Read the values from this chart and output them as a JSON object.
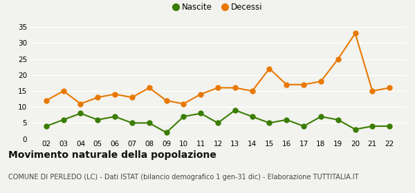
{
  "years": [
    "02",
    "03",
    "04",
    "05",
    "06",
    "07",
    "08",
    "09",
    "10",
    "11",
    "12",
    "13",
    "14",
    "15",
    "16",
    "17",
    "18",
    "19",
    "20",
    "21",
    "22"
  ],
  "nascite": [
    4,
    6,
    8,
    6,
    7,
    5,
    5,
    2,
    7,
    8,
    5,
    9,
    7,
    5,
    6,
    4,
    7,
    6,
    3,
    4,
    4
  ],
  "decessi": [
    12,
    15,
    11,
    13,
    14,
    13,
    16,
    12,
    11,
    14,
    16,
    16,
    15,
    22,
    17,
    17,
    18,
    25,
    33,
    15,
    16
  ],
  "nascite_color": "#3a7d00",
  "decessi_color": "#e87800",
  "marker_size": 5,
  "line_width": 1.5,
  "ylim": [
    0,
    35
  ],
  "yticks": [
    0,
    5,
    10,
    15,
    20,
    25,
    30,
    35
  ],
  "title": "Movimento naturale della popolazione",
  "subtitle": "COMUNE DI PERLEDO (LC) - Dati ISTAT (bilancio demografico 1 gen-31 dic) - Elaborazione TUTTITALIA.IT",
  "legend_nascite": "Nascite",
  "legend_decessi": "Decessi",
  "bg_color": "#f2f2ee",
  "grid_color": "#ffffff",
  "title_fontsize": 10,
  "subtitle_fontsize": 7,
  "tick_fontsize": 7.5,
  "legend_fontsize": 8.5
}
